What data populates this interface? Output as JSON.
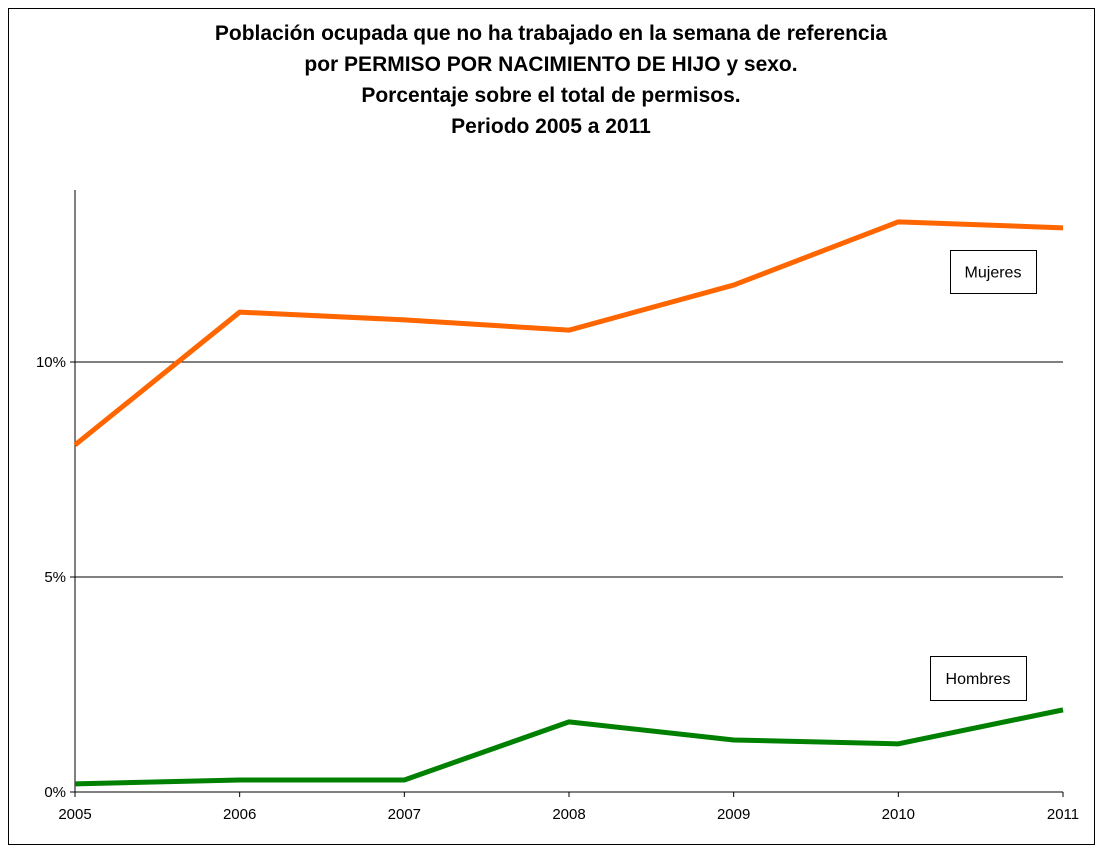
{
  "chart_data": {
    "type": "line",
    "title": [
      "Población ocupada que no ha trabajado en la semana de referencia",
      "por PERMISO POR NACIMIENTO DE HIJO y sexo.",
      "Porcentaje sobre el total de permisos.",
      "Periodo 2005 a 2011"
    ],
    "x": [
      2005,
      2006,
      2007,
      2008,
      2009,
      2010,
      2011
    ],
    "xlim": [
      2005,
      2011
    ],
    "xticks": [
      2005,
      2006,
      2007,
      2008,
      2009,
      2010,
      2011
    ],
    "ylim": [
      0,
      14
    ],
    "yticks": [
      {
        "value": 0,
        "label": "0%"
      },
      {
        "value": 5,
        "label": "5%"
      },
      {
        "value": 10,
        "label": "10%"
      }
    ],
    "grid": true,
    "series": [
      {
        "name": "Mujeres",
        "color": "#ff6600",
        "values": [
          8.07,
          11.16,
          10.98,
          10.74,
          11.79,
          13.26,
          13.12
        ]
      },
      {
        "name": "Hombres",
        "color": "#008000",
        "values": [
          0.19,
          0.28,
          0.28,
          1.63,
          1.21,
          1.12,
          1.91
        ]
      }
    ]
  }
}
